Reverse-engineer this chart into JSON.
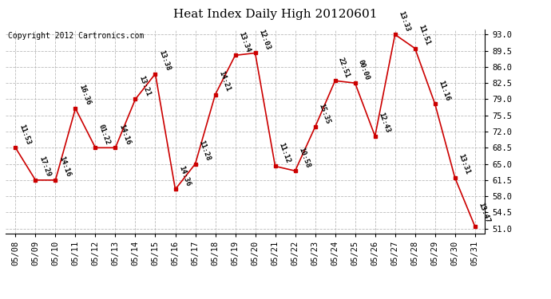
{
  "title": "Heat Index Daily High 20120601",
  "copyright": "Copyright 2012 Cartronics.com",
  "dates": [
    "05/08",
    "05/09",
    "05/10",
    "05/11",
    "05/12",
    "05/13",
    "05/14",
    "05/15",
    "05/16",
    "05/17",
    "05/18",
    "05/19",
    "05/20",
    "05/21",
    "05/22",
    "05/23",
    "05/24",
    "05/25",
    "05/26",
    "05/27",
    "05/28",
    "05/29",
    "05/30",
    "05/31"
  ],
  "values": [
    68.5,
    61.5,
    61.5,
    77.0,
    68.5,
    68.5,
    79.0,
    84.5,
    59.5,
    65.0,
    80.0,
    88.5,
    89.0,
    64.5,
    63.5,
    73.0,
    83.0,
    82.5,
    71.0,
    93.0,
    90.0,
    78.0,
    62.0,
    51.5
  ],
  "labels": [
    "11:53",
    "17:29",
    "14:16",
    "16:36",
    "01:22",
    "14:16",
    "13:21",
    "13:38",
    "14:36",
    "11:28",
    "14:21",
    "13:34",
    "12:03",
    "11:12",
    "10:58",
    "15:35",
    "22:51",
    "00:00",
    "12:43",
    "13:33",
    "11:51",
    "11:16",
    "13:31",
    "13:47"
  ],
  "ylim_min": 51.0,
  "ylim_max": 93.0,
  "yticks": [
    51.0,
    54.5,
    58.0,
    61.5,
    65.0,
    68.5,
    72.0,
    75.5,
    79.0,
    82.5,
    86.0,
    89.5,
    93.0
  ],
  "line_color": "#cc0000",
  "marker_color": "#cc0000",
  "bg_color": "#ffffff",
  "plot_bg_color": "#ffffff",
  "grid_color": "#bbbbbb",
  "title_fontsize": 11,
  "label_fontsize": 6.5,
  "tick_fontsize": 7.5,
  "copyright_fontsize": 7
}
